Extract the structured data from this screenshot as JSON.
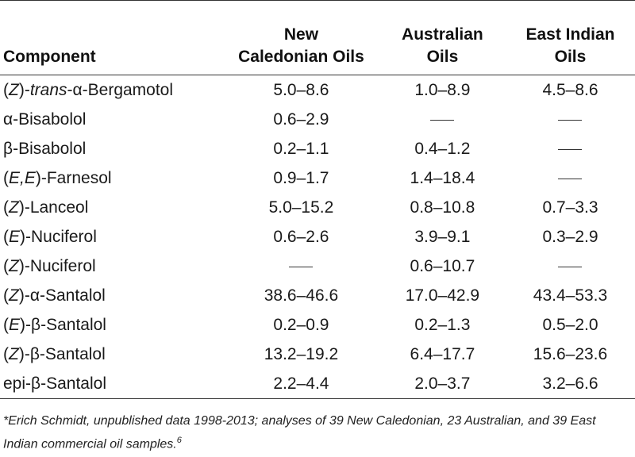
{
  "table": {
    "headers": {
      "component": "Component",
      "new_caledonian_1": "New",
      "new_caledonian_2": "Caledonian Oils",
      "australian_1": "Australian",
      "australian_2": "Oils",
      "east_indian_1": "East Indian",
      "east_indian_2": "Oils"
    },
    "rows": [
      {
        "pre": "(",
        "ital": "Z",
        "mid": ")-",
        "ital2": "trans",
        "post": "-α-Bergamotol",
        "nc": "5.0–8.6",
        "au": "1.0–8.9",
        "ei": "4.5–8.6"
      },
      {
        "pre": "",
        "ital": "",
        "mid": "",
        "ital2": "",
        "post": "α-Bisabolol",
        "nc": "0.6–2.9",
        "au": "",
        "ei": ""
      },
      {
        "pre": "",
        "ital": "",
        "mid": "",
        "ital2": "",
        "post": "β-Bisabolol",
        "nc": "0.2–1.1",
        "au": "0.4–1.2",
        "ei": ""
      },
      {
        "pre": "(",
        "ital": "E,E",
        "mid": ")-Farnesol",
        "ital2": "",
        "post": "",
        "nc": "0.9–1.7",
        "au": "1.4–18.4",
        "ei": ""
      },
      {
        "pre": "(",
        "ital": "Z",
        "mid": ")-Lanceol",
        "ital2": "",
        "post": "",
        "nc": "5.0–15.2",
        "au": "0.8–10.8",
        "ei": "0.7–3.3"
      },
      {
        "pre": "(",
        "ital": "E",
        "mid": ")-Nuciferol",
        "ital2": "",
        "post": "",
        "nc": "0.6–2.6",
        "au": "3.9–9.1",
        "ei": "0.3–2.9"
      },
      {
        "pre": "(",
        "ital": "Z",
        "mid": ")-Nuciferol",
        "ital2": "",
        "post": "",
        "nc": "",
        "au": "0.6–10.7",
        "ei": ""
      },
      {
        "pre": "(",
        "ital": "Z",
        "mid": ")-α-Santalol",
        "ital2": "",
        "post": "",
        "nc": "38.6–46.6",
        "au": "17.0–42.9",
        "ei": "43.4–53.3"
      },
      {
        "pre": "(",
        "ital": "E",
        "mid": ")-β-Santalol",
        "ital2": "",
        "post": "",
        "nc": "0.2–0.9",
        "au": "0.2–1.3",
        "ei": "0.5–2.0"
      },
      {
        "pre": "(",
        "ital": "Z",
        "mid": ")-β-Santalol",
        "ital2": "",
        "post": "",
        "nc": "13.2–19.2",
        "au": "6.4–17.7",
        "ei": "15.6–23.6"
      },
      {
        "pre": "",
        "ital": "",
        "mid": "",
        "ital2": "",
        "post": "epi-β-Santalol",
        "nc": "2.2–4.4",
        "au": "2.0–3.7",
        "ei": "3.2–6.6"
      }
    ]
  },
  "footnote": {
    "text": "*Erich Schmidt, unpublished data 1998-2013; analyses of 39 New Caledonian, 23 Australian, and 39 East Indian commercial oil samples.",
    "sup": "6"
  }
}
